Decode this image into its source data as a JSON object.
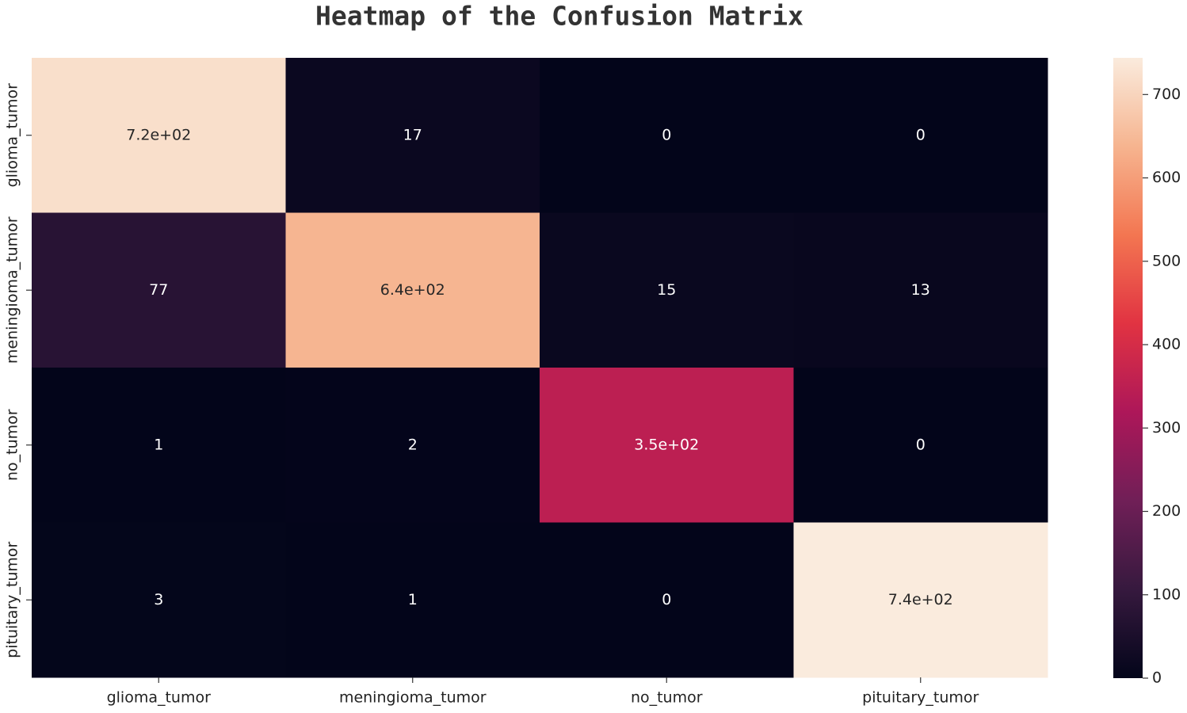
{
  "chart_data": {
    "type": "heatmap",
    "title": "Heatmap of the Confusion Matrix",
    "x_categories": [
      "glioma_tumor",
      "meningioma_tumor",
      "no_tumor",
      "pituitary_tumor"
    ],
    "y_categories": [
      "glioma_tumor",
      "meningioma_tumor",
      "no_tumor",
      "pituitary_tumor"
    ],
    "values": [
      [
        720,
        17,
        0,
        0
      ],
      [
        77,
        640,
        15,
        13
      ],
      [
        1,
        2,
        350,
        0
      ],
      [
        3,
        1,
        0,
        744
      ]
    ],
    "value_labels": [
      [
        "7.2e+02",
        "17",
        "0",
        "0"
      ],
      [
        "77",
        "6.4e+02",
        "15",
        "13"
      ],
      [
        "1",
        "2",
        "3.5e+02",
        "0"
      ],
      [
        "3",
        "1",
        "0",
        "7.4e+02"
      ]
    ],
    "zlim": [
      0,
      744
    ],
    "zticks": [
      0,
      100,
      200,
      300,
      400,
      500,
      600,
      700
    ],
    "colorscale": [
      "#03051a",
      "#36193e",
      "#701f57",
      "#ad1759",
      "#e13342",
      "#f37651",
      "#f6b48f",
      "#faebdd"
    ]
  }
}
